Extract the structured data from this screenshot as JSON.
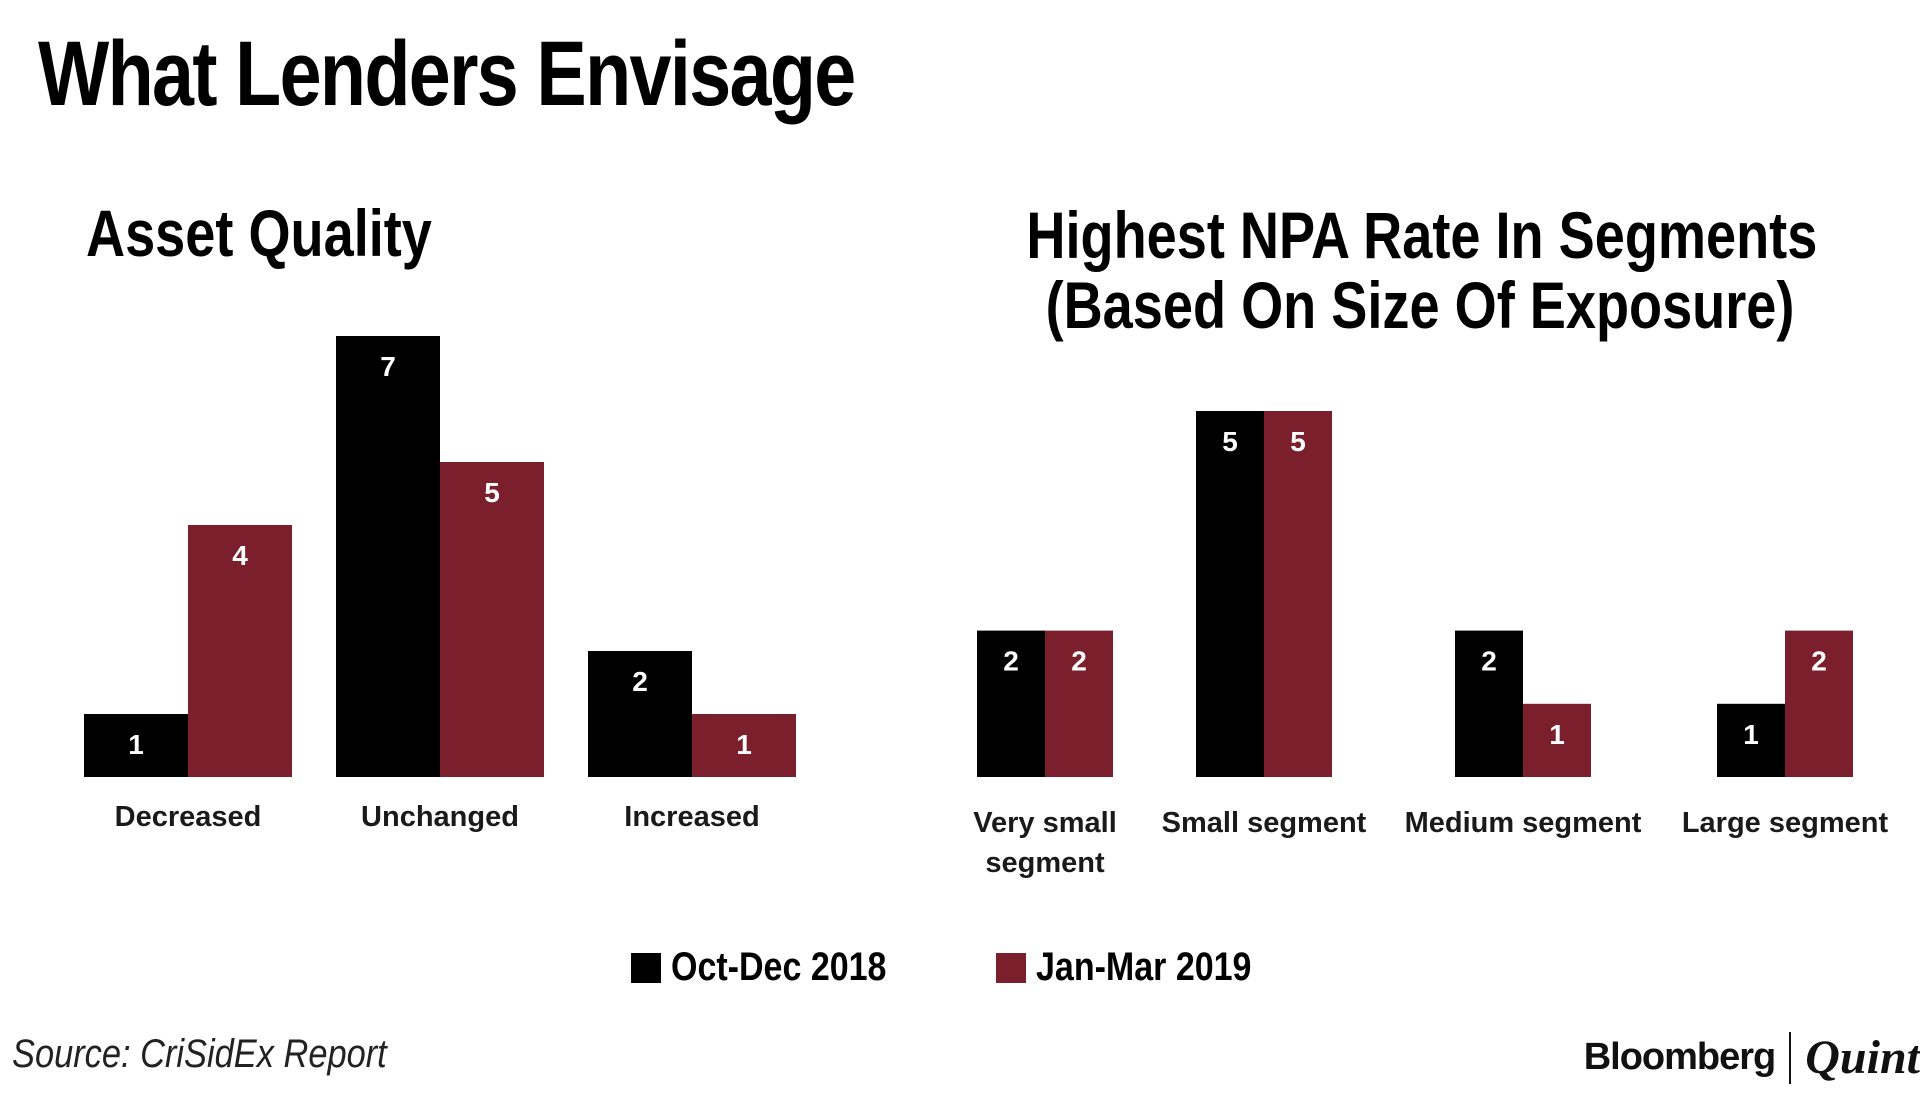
{
  "title": "What Lenders Envisage",
  "colors": {
    "series1": "#000000",
    "series2": "#7a1f2b"
  },
  "chart_data": [
    {
      "type": "bar",
      "title": "Asset Quality",
      "categories": [
        "Decreased",
        "Unchanged",
        "Increased"
      ],
      "series": [
        {
          "name": "Oct-Dec 2018",
          "values": [
            1,
            7,
            2
          ]
        },
        {
          "name": "Jan-Mar 2019",
          "values": [
            4,
            5,
            1
          ]
        }
      ],
      "ylim": [
        0,
        7
      ]
    },
    {
      "type": "bar",
      "title": "Highest NPA Rate In Segments (Based On Size Of Exposure)",
      "title_lines": [
        "Highest NPA Rate In Segments",
        "(Based On Size Of Exposure)"
      ],
      "categories": [
        "Very small segment",
        "Small segment",
        "Medium segment",
        "Large segment"
      ],
      "category_lines": [
        [
          "Very small",
          "segment"
        ],
        [
          "Small segment"
        ],
        [
          "Medium segment"
        ],
        [
          "Large segment"
        ]
      ],
      "series": [
        {
          "name": "Oct-Dec 2018",
          "values": [
            2,
            5,
            2,
            1
          ]
        },
        {
          "name": "Jan-Mar 2019",
          "values": [
            2,
            5,
            1,
            2
          ]
        }
      ],
      "ylim": [
        0,
        5
      ]
    }
  ],
  "legend": [
    {
      "label": "Oct-Dec 2018"
    },
    {
      "label": "Jan-Mar 2019"
    }
  ],
  "source": "Source: CriSidEx Report",
  "brand": {
    "primary": "Bloomberg",
    "secondary": "Quint"
  }
}
